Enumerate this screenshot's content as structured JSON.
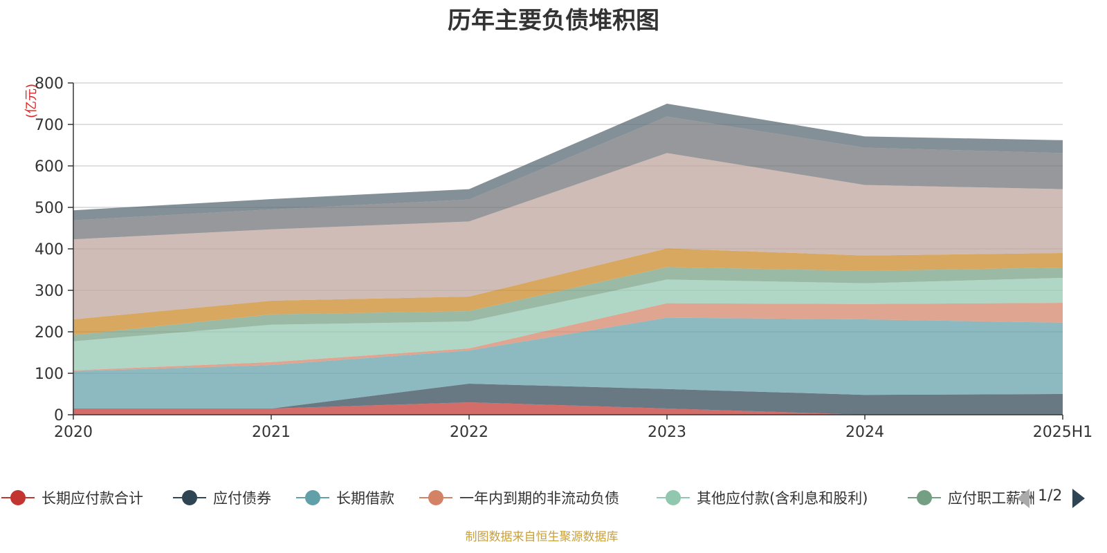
{
  "title": "历年主要负债堆积图",
  "source_note": "制图数据来自恒生聚源数据库",
  "pager": {
    "text": "1/2"
  },
  "chart_data": {
    "type": "area",
    "stacked": true,
    "title": "历年主要负债堆积图",
    "ylabel": "(亿元)",
    "xlabel": "",
    "categories": [
      "2020",
      "2021",
      "2022",
      "2023",
      "2024",
      "2025H1"
    ],
    "y_ticks": [
      "0",
      "100",
      "200",
      "300",
      "400",
      "500",
      "600",
      "700",
      "800"
    ],
    "ylim": [
      0,
      800
    ],
    "grid": true,
    "legend_position": "bottom",
    "series": [
      {
        "name": "长期应付款合计",
        "color": "#c23531",
        "values": [
          15,
          15,
          30,
          15,
          0,
          0
        ]
      },
      {
        "name": "应付债券",
        "color": "#2f4554",
        "values": [
          0,
          0,
          45,
          47,
          48,
          50
        ]
      },
      {
        "name": "长期借款",
        "color": "#61a0a8",
        "values": [
          90,
          105,
          80,
          172,
          182,
          172
        ]
      },
      {
        "name": "一年内到期的非流动负债",
        "color": "#d48265",
        "values": [
          2,
          7,
          5,
          35,
          37,
          48
        ]
      },
      {
        "name": "其他应付款(含利息和股利)",
        "color": "#91c7ae",
        "values": [
          70,
          90,
          65,
          57,
          50,
          60
        ]
      },
      {
        "name": "应付职工薪酬",
        "color": "#749f83",
        "values": [
          15,
          25,
          25,
          30,
          30,
          25
        ]
      },
      {
        "name": "",
        "color": "#ca8622",
        "values": [
          38,
          33,
          35,
          45,
          37,
          35
        ]
      },
      {
        "name": "",
        "color": "#bda29a",
        "values": [
          193,
          172,
          181,
          230,
          170,
          154
        ]
      },
      {
        "name": "",
        "color": "#6e7074",
        "values": [
          46,
          48,
          53,
          88,
          90,
          87
        ]
      },
      {
        "name": "",
        "color": "#546570",
        "values": [
          24,
          25,
          25,
          31,
          27,
          31
        ]
      }
    ]
  }
}
